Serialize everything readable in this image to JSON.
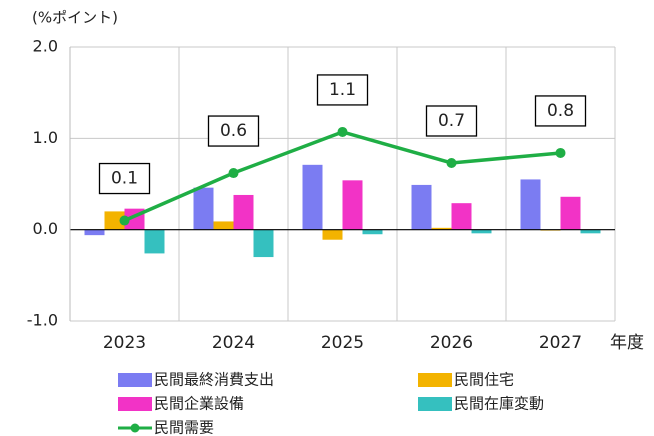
{
  "chart_data": {
    "type": "bar",
    "y_label": "(%ポイント)",
    "x_label": "年度",
    "categories": [
      "2023",
      "2024",
      "2025",
      "2026",
      "2027"
    ],
    "ylim": [
      -1.0,
      2.0
    ],
    "yticks": [
      {
        "value": -1.0,
        "label": "-1.0"
      },
      {
        "value": 0,
        "label": "0.0"
      },
      {
        "value": 1.0,
        "label": "1.0"
      },
      {
        "value": 2.0,
        "label": "2.0"
      }
    ],
    "grid": true,
    "series": [
      {
        "name": "民間最終消費支出",
        "color": "#7b7cf2",
        "values": [
          -0.06,
          0.46,
          0.71,
          0.49,
          0.55
        ]
      },
      {
        "name": "民間住宅",
        "color": "#f3b300",
        "values": [
          0.2,
          0.09,
          -0.11,
          0.02,
          -0.01
        ]
      },
      {
        "name": "民間企業設備",
        "color": "#f233c6",
        "values": [
          0.23,
          0.38,
          0.54,
          0.29,
          0.36
        ]
      },
      {
        "name": "民間在庫変動",
        "color": "#35c0bf",
        "values": [
          -0.26,
          -0.3,
          -0.05,
          -0.04,
          -0.04
        ]
      },
      {
        "name": "民間需要",
        "type": "line",
        "color": "#1fae45",
        "values": [
          0.1,
          0.62,
          1.07,
          0.73,
          0.84
        ],
        "value_labels": [
          "0.1",
          "0.6",
          "1.1",
          "0.7",
          "0.8"
        ]
      }
    ]
  }
}
